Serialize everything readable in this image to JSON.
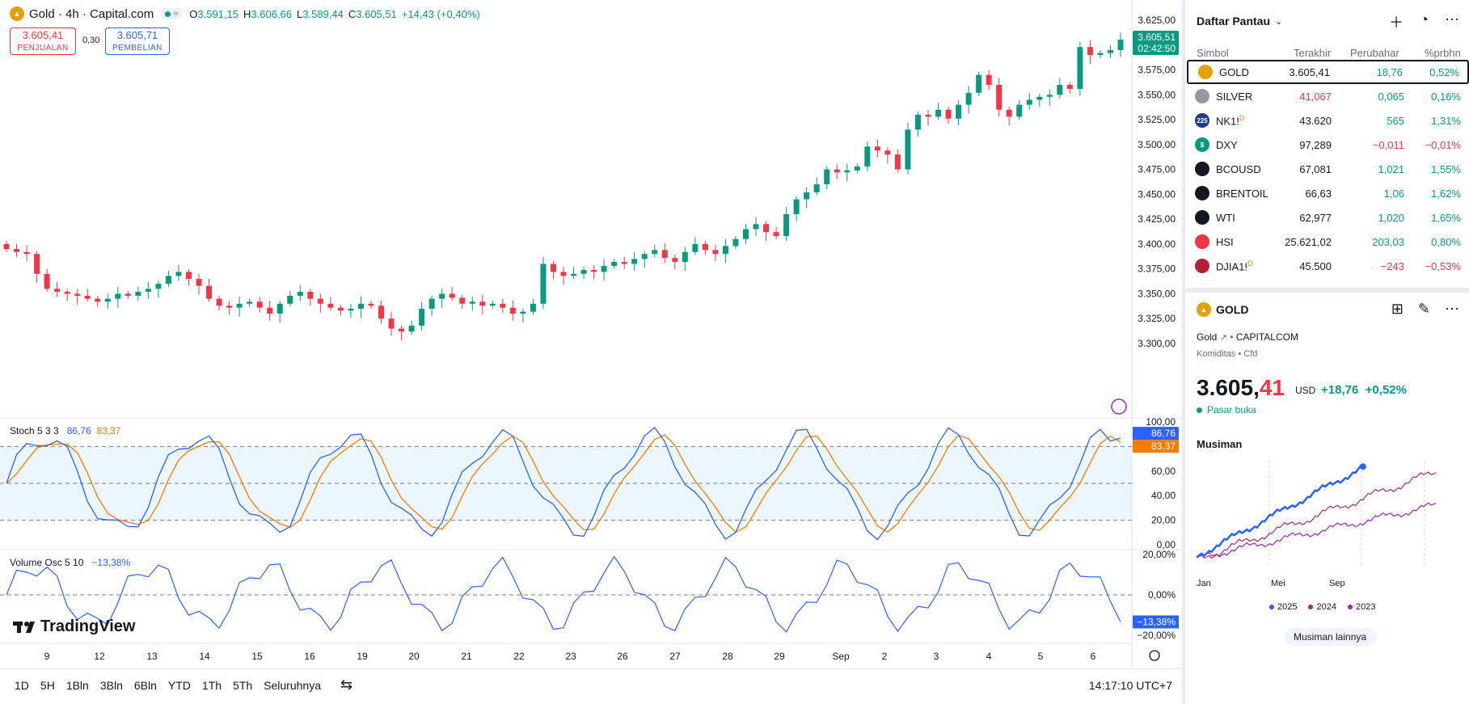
{
  "header": {
    "symbol_icon": "gold-icon",
    "title": "Gold · 4h · Capital.com",
    "badge_icon": "wave-icon",
    "o_label": "O",
    "o_val": "3.591,15",
    "h_label": "H",
    "h_val": "3.606,66",
    "l_label": "L",
    "l_val": "3.589,44",
    "c_label": "C",
    "c_val": "3.605,51",
    "change": "+14,43 (+0,40%)",
    "sell_price": "3.605,41",
    "sell_label": "PENJUALAN",
    "spread": "0,30",
    "buy_price": "3.605,71",
    "buy_label": "PEMBELIAN"
  },
  "price_axis": {
    "labels": [
      "3.625,00",
      "3.600,00",
      "3.575,00",
      "3.550,00",
      "3.525,00",
      "3.500,00",
      "3.475,00",
      "3.450,00",
      "3.425,00",
      "3.400,00",
      "3.375,00",
      "3.350,00",
      "3.325,00",
      "3.300,00"
    ],
    "current_price": "3.605,51",
    "countdown": "02:42:50",
    "current_color": "#089981"
  },
  "stoch": {
    "name": "Stoch 5 3 3",
    "k_val": "86,76",
    "d_val": "83,37",
    "k_color": "#2962ff",
    "d_color": "#f57c00",
    "axis_labels": [
      "100,00",
      "80,00",
      "60,00",
      "40,00",
      "20,00",
      "0,00"
    ]
  },
  "volosc": {
    "name": "Volume Osc 5 10",
    "value": "−13,38%",
    "axis_labels": [
      "20,00%",
      "0,00%",
      "−20,00%"
    ],
    "tag": "−13,38%"
  },
  "time_axis": {
    "labels": [
      "9",
      "12",
      "13",
      "14",
      "15",
      "16",
      "19",
      "20",
      "21",
      "22",
      "23",
      "26",
      "27",
      "28",
      "29",
      "Sep",
      "2",
      "3",
      "4",
      "5",
      "6"
    ]
  },
  "logo": "TradingView",
  "bottom_bar": {
    "ranges": [
      "1D",
      "5H",
      "1Bln",
      "3Bln",
      "6Bln",
      "YTD",
      "1Th",
      "5Th",
      "Seluruhnya"
    ],
    "clock": "14:17:10 UTC+7"
  },
  "watchlist": {
    "title": "Daftar Pantau",
    "columns": {
      "symbol": "Simbol",
      "last": "Terakhir",
      "change": "Perubahar",
      "pct": "%prbhn"
    },
    "rows": [
      {
        "icon": "gold-icon",
        "icon_color": "#e3a008",
        "symbol": "GOLD",
        "last": "3.605,41",
        "change": "18,76",
        "pct": "0,52%",
        "dir": "pos",
        "last_color": "#131722",
        "active": true
      },
      {
        "icon": "silver-icon",
        "icon_color": "#9598a1",
        "symbol": "SILVER",
        "last": "41,067",
        "change": "0,065",
        "pct": "0,16%",
        "dir": "pos",
        "last_color": "#f23645",
        "active": false
      },
      {
        "icon": "nikkei-icon",
        "icon_color": "#1e3a8a",
        "icon_text": "225",
        "symbol": "NK1!",
        "last": "43.620",
        "change": "565",
        "pct": "1,31%",
        "dir": "pos",
        "last_color": "#131722",
        "active": false,
        "suffix": "D"
      },
      {
        "icon": "dollar-icon",
        "icon_color": "#089981",
        "icon_text": "$",
        "symbol": "DXY",
        "last": "97,289",
        "change": "−0,011",
        "pct": "−0,01%",
        "dir": "neg",
        "last_color": "#131722",
        "active": false
      },
      {
        "icon": "oil-drop-icon",
        "icon_color": "#131722",
        "symbol": "BCOUSD",
        "last": "67,081",
        "change": "1,021",
        "pct": "1,55%",
        "dir": "pos",
        "last_color": "#131722",
        "active": false
      },
      {
        "icon": "oil-drop-icon",
        "icon_color": "#131722",
        "symbol": "BRENTOIL",
        "last": "66,63",
        "change": "1,06",
        "pct": "1,62%",
        "dir": "pos",
        "last_color": "#131722",
        "active": false
      },
      {
        "icon": "oil-drop-icon",
        "icon_color": "#131722",
        "symbol": "WTI",
        "last": "62,977",
        "change": "1,020",
        "pct": "1,65%",
        "dir": "pos",
        "last_color": "#131722",
        "active": false
      },
      {
        "icon": "hsi-icon",
        "icon_color": "#f23645",
        "symbol": "HSI",
        "last": "25.621,02",
        "change": "203,03",
        "pct": "0,80%",
        "dir": "pos",
        "last_color": "#131722",
        "active": false
      },
      {
        "icon": "us-flag-icon",
        "icon_color": "#b22234",
        "symbol": "DJIA1!",
        "last": "45.500",
        "change": "−243",
        "pct": "−0,53%",
        "dir": "neg",
        "last_color": "#131722",
        "active": false,
        "suffix": "D"
      }
    ]
  },
  "detail": {
    "symbol": "GOLD",
    "name": "Gold",
    "exchange": "CAPITALCOM",
    "category": "Komiditas",
    "type": "Cfd",
    "price": "3.605,41",
    "currency": "USD",
    "change": "+18,76",
    "pct": "+0,52%",
    "status": "Pasar buka",
    "seasonal_title": "Musiman",
    "x_labels": [
      "Jan",
      "Mei",
      "Sep"
    ],
    "legend": [
      {
        "label": "2025",
        "color": "#2962ff"
      },
      {
        "label": "2024",
        "color": "#b2266e"
      },
      {
        "label": "2023",
        "color": "#9c27b0"
      }
    ],
    "more_button": "Musiman lainnya"
  },
  "chart_data": [
    {
      "type": "candlestick",
      "title": "Gold · 4h · Capital.com",
      "x": [
        "9",
        "12",
        "13",
        "14",
        "15",
        "16",
        "19",
        "20",
        "21",
        "22",
        "23",
        "26",
        "27",
        "28",
        "29",
        "Sep",
        "2",
        "3",
        "4",
        "5",
        "6"
      ],
      "ylim": [
        3290,
        3630
      ],
      "closes": [
        3395,
        3392,
        3390,
        3370,
        3355,
        3352,
        3350,
        3348,
        3345,
        3342,
        3345,
        3350,
        3348,
        3352,
        3355,
        3360,
        3368,
        3372,
        3365,
        3358,
        3345,
        3338,
        3336,
        3340,
        3342,
        3336,
        3330,
        3340,
        3348,
        3352,
        3345,
        3340,
        3336,
        3333,
        3335,
        3340,
        3338,
        3325,
        3315,
        3312,
        3318,
        3335,
        3345,
        3350,
        3346,
        3340,
        3342,
        3338,
        3340,
        3336,
        3330,
        3332,
        3340,
        3380,
        3372,
        3368,
        3370,
        3374,
        3372,
        3378,
        3382,
        3380,
        3385,
        3390,
        3394,
        3386,
        3382,
        3392,
        3400,
        3394,
        3390,
        3398,
        3405,
        3415,
        3420,
        3412,
        3408,
        3430,
        3445,
        3452,
        3460,
        3475,
        3472,
        3474,
        3478,
        3498,
        3494,
        3490,
        3475,
        3515,
        3530,
        3528,
        3535,
        3526,
        3540,
        3552,
        3570,
        3560,
        3535,
        3528,
        3540,
        3545,
        3548,
        3550,
        3560,
        3556,
        3598,
        3590,
        3592,
        3595,
        3605.51
      ],
      "current": 3605.51
    },
    {
      "type": "line",
      "title": "Stoch 5 3 3",
      "ylim": [
        0,
        100
      ],
      "series": [
        {
          "name": "%K",
          "last": 86.76
        },
        {
          "name": "%D",
          "last": 83.37
        }
      ]
    },
    {
      "type": "line",
      "title": "Volume Osc 5 10",
      "ylim": [
        -20,
        20
      ],
      "series": [
        {
          "name": "Volume Osc",
          "last": -13.38
        }
      ]
    },
    {
      "type": "line",
      "title": "Musiman",
      "categories": [
        "Jan",
        "Mei",
        "Sep"
      ],
      "series": [
        {
          "name": "2025"
        },
        {
          "name": "2024"
        },
        {
          "name": "2023"
        }
      ]
    }
  ]
}
